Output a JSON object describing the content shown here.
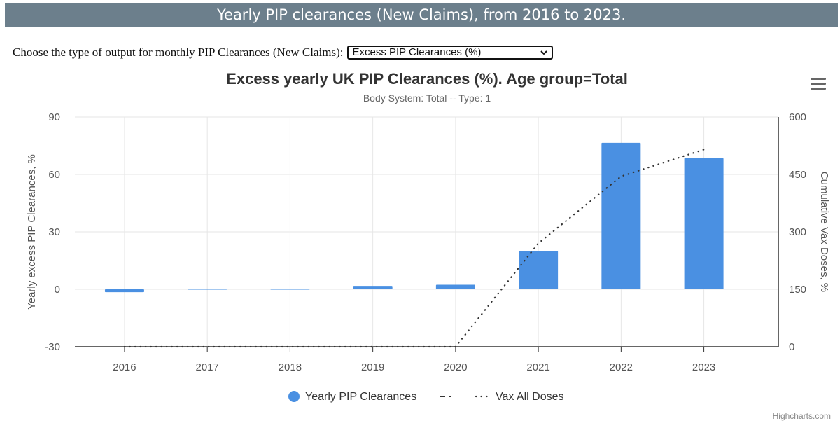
{
  "page": {
    "header": "Yearly PIP clearances (New Claims), from 2016 to 2023.",
    "control_label": "Choose the type of output for monthly PIP Clearances (New Claims):",
    "select_value": "Excess PIP Clearances (%)",
    "credits": "Highcharts.com"
  },
  "colors": {
    "bar": "#4a90e2",
    "header_bg": "#6c7f8c",
    "line": "#333333"
  },
  "icons": {
    "menu": "hamburger-menu-icon",
    "dropdown": "chevron-down-icon"
  },
  "chart_data": {
    "type": "bar",
    "title": "Excess yearly UK PIP Clearances (%). Age group=Total",
    "subtitle": "Body System: Total -- Type: 1",
    "categories": [
      "2016",
      "2017",
      "2018",
      "2019",
      "2020",
      "2021",
      "2022",
      "2023"
    ],
    "ylabel": "Yearly excess PIP Clearances, %",
    "y2label": "Cumulative Vax Doses, %",
    "ylim": [
      -30,
      90
    ],
    "yticks": [
      -30,
      0,
      30,
      60,
      90
    ],
    "y2lim": [
      0,
      600
    ],
    "y2ticks": [
      0,
      150,
      300,
      450,
      600
    ],
    "series": [
      {
        "name": "Yearly PIP Clearances",
        "type": "bar",
        "axis": "left",
        "values": [
          -1.5,
          0,
          0,
          1.8,
          2.4,
          20,
          76.5,
          68.5
        ]
      },
      {
        "name": "Vax All Doses",
        "type": "line",
        "style": "dotted",
        "axis": "right",
        "values": [
          0,
          0,
          0,
          0,
          0,
          270,
          445,
          515
        ]
      }
    ],
    "legend": {
      "position": "bottom",
      "items": [
        "Yearly PIP Clearances",
        "Vax All Doses"
      ]
    }
  }
}
